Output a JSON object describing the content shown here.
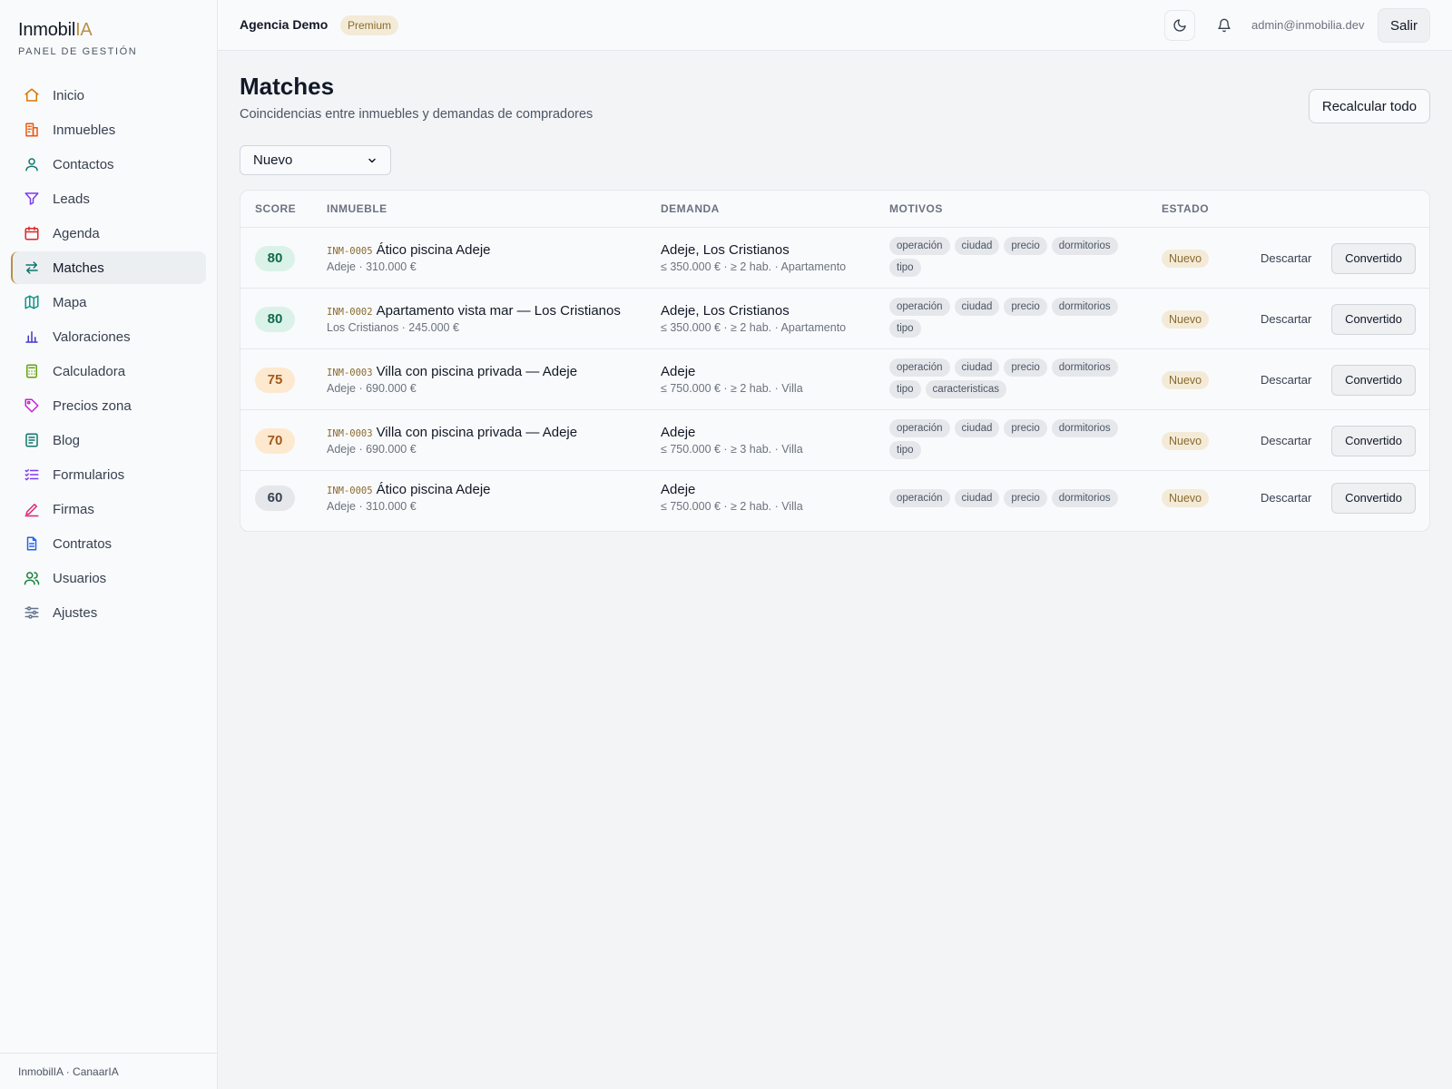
{
  "brand": {
    "name_main": "Inmobil",
    "name_accent": "IA",
    "subtitle": "PANEL DE GESTIÓN"
  },
  "sidebar": {
    "items": [
      {
        "label": "Inicio",
        "icon": "home-icon",
        "color": "#d97706"
      },
      {
        "label": "Inmuebles",
        "icon": "building-icon",
        "color": "#ea580c"
      },
      {
        "label": "Contactos",
        "icon": "user-icon",
        "color": "#0f766e"
      },
      {
        "label": "Leads",
        "icon": "filter-icon",
        "color": "#7c3aed"
      },
      {
        "label": "Agenda",
        "icon": "calendar-icon",
        "color": "#dc2626"
      },
      {
        "label": "Matches",
        "icon": "swap-arrows-icon",
        "color": "#0f766e",
        "active": true
      },
      {
        "label": "Mapa",
        "icon": "map-icon",
        "color": "#0d9488"
      },
      {
        "label": "Valoraciones",
        "icon": "bar-chart-icon",
        "color": "#4338ca"
      },
      {
        "label": "Calculadora",
        "icon": "calculator-icon",
        "color": "#65a30d"
      },
      {
        "label": "Precios zona",
        "icon": "tag-icon",
        "color": "#c026d3"
      },
      {
        "label": "Blog",
        "icon": "document-lines-icon",
        "color": "#0f766e"
      },
      {
        "label": "Formularios",
        "icon": "checklist-icon",
        "color": "#7c3aed"
      },
      {
        "label": "Firmas",
        "icon": "pen-icon",
        "color": "#db2777"
      },
      {
        "label": "Contratos",
        "icon": "file-icon",
        "color": "#2563eb"
      },
      {
        "label": "Usuarios",
        "icon": "users-icon",
        "color": "#15803d"
      },
      {
        "label": "Ajustes",
        "icon": "sliders-icon",
        "color": "#64748b"
      }
    ],
    "footer": "InmobilIA · CanaarIA"
  },
  "topbar": {
    "agency": "Agencia Demo",
    "plan_badge": "Premium",
    "theme_icon": "moon-icon",
    "notifications_icon": "bell-icon",
    "user_email": "admin@inmobilia.dev",
    "logout_label": "Salir"
  },
  "main": {
    "title": "Matches",
    "subtitle": "Coincidencias entre inmuebles y demandas de compradores",
    "recalc_label": "Recalcular todo",
    "filter_value": "Nuevo",
    "columns": [
      "SCORE",
      "INMUEBLE",
      "DEMANDA",
      "MOTIVOS",
      "ESTADO"
    ],
    "discard_label": "Descartar",
    "convert_label": "Convertido",
    "rows": [
      {
        "score": "80",
        "score_tone": "green",
        "code": "INM-0005",
        "title": "Ático piscina Adeje",
        "prop_meta": "Adeje · 310.000 €",
        "demand": "Adeje, Los Cristianos",
        "demand_meta": "≤ 350.000 € · ≥ 2 hab. · Apartamento",
        "tags": [
          "operación",
          "ciudad",
          "precio",
          "dormitorios",
          "tipo"
        ],
        "status": "Nuevo"
      },
      {
        "score": "80",
        "score_tone": "green",
        "code": "INM-0002",
        "title": "Apartamento vista mar — Los Cristianos",
        "prop_meta": "Los Cristianos · 245.000 €",
        "demand": "Adeje, Los Cristianos",
        "demand_meta": "≤ 350.000 € · ≥ 2 hab. · Apartamento",
        "tags": [
          "operación",
          "ciudad",
          "precio",
          "dormitorios",
          "tipo"
        ],
        "status": "Nuevo"
      },
      {
        "score": "75",
        "score_tone": "orange",
        "code": "INM-0003",
        "title": "Villa con piscina privada — Adeje",
        "prop_meta": "Adeje · 690.000 €",
        "demand": "Adeje",
        "demand_meta": "≤ 750.000 € · ≥ 2 hab. · Villa",
        "tags": [
          "operación",
          "ciudad",
          "precio",
          "dormitorios",
          "tipo",
          "caracteristicas"
        ],
        "status": "Nuevo"
      },
      {
        "score": "70",
        "score_tone": "orange",
        "code": "INM-0003",
        "title": "Villa con piscina privada — Adeje",
        "prop_meta": "Adeje · 690.000 €",
        "demand": "Adeje",
        "demand_meta": "≤ 750.000 € · ≥ 3 hab. · Villa",
        "tags": [
          "operación",
          "ciudad",
          "precio",
          "dormitorios",
          "tipo"
        ],
        "status": "Nuevo"
      },
      {
        "score": "60",
        "score_tone": "gray",
        "code": "INM-0005",
        "title": "Ático piscina Adeje",
        "prop_meta": "Adeje · 310.000 €",
        "demand": "Adeje",
        "demand_meta": "≤ 750.000 € · ≥ 2 hab. · Villa",
        "tags": [
          "operación",
          "ciudad",
          "precio",
          "dormitorios"
        ],
        "status": "Nuevo"
      }
    ]
  }
}
